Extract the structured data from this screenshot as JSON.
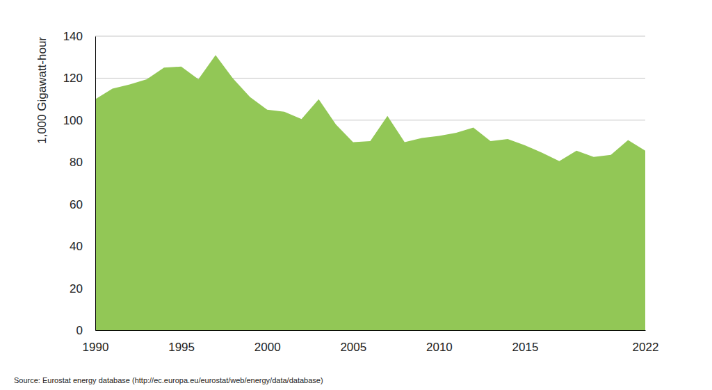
{
  "chart_data": {
    "type": "area",
    "y_label": "1,000 Gigawatt-hour",
    "source": "Source: Eurostat energy database (http://ec.europa.eu/eurostat/web/energy/data/database)",
    "x": [
      1990,
      1991,
      1992,
      1993,
      1994,
      1995,
      1996,
      1997,
      1998,
      1999,
      2000,
      2001,
      2002,
      2003,
      2004,
      2005,
      2006,
      2007,
      2008,
      2009,
      2010,
      2011,
      2012,
      2013,
      2014,
      2015,
      2016,
      2017,
      2018,
      2019,
      2020,
      2021,
      2022
    ],
    "values": [
      110,
      115,
      117,
      119.5,
      125,
      125.5,
      119.5,
      131,
      120,
      111,
      105,
      104,
      100.5,
      110,
      98,
      89.5,
      90,
      102,
      89.5,
      91.5,
      92.5,
      94,
      96.5,
      90,
      91,
      88,
      84.5,
      80.5,
      85.5,
      82.5,
      83.5,
      90.5,
      85.5
    ],
    "color": "#92c756",
    "xlim": [
      1990,
      2022
    ],
    "xticks": [
      1990,
      1995,
      2000,
      2005,
      2010,
      2015,
      2022
    ],
    "ylim": [
      0,
      140
    ],
    "yticks": [
      0,
      20,
      40,
      60,
      80,
      100,
      120,
      140
    ],
    "grid": true
  }
}
